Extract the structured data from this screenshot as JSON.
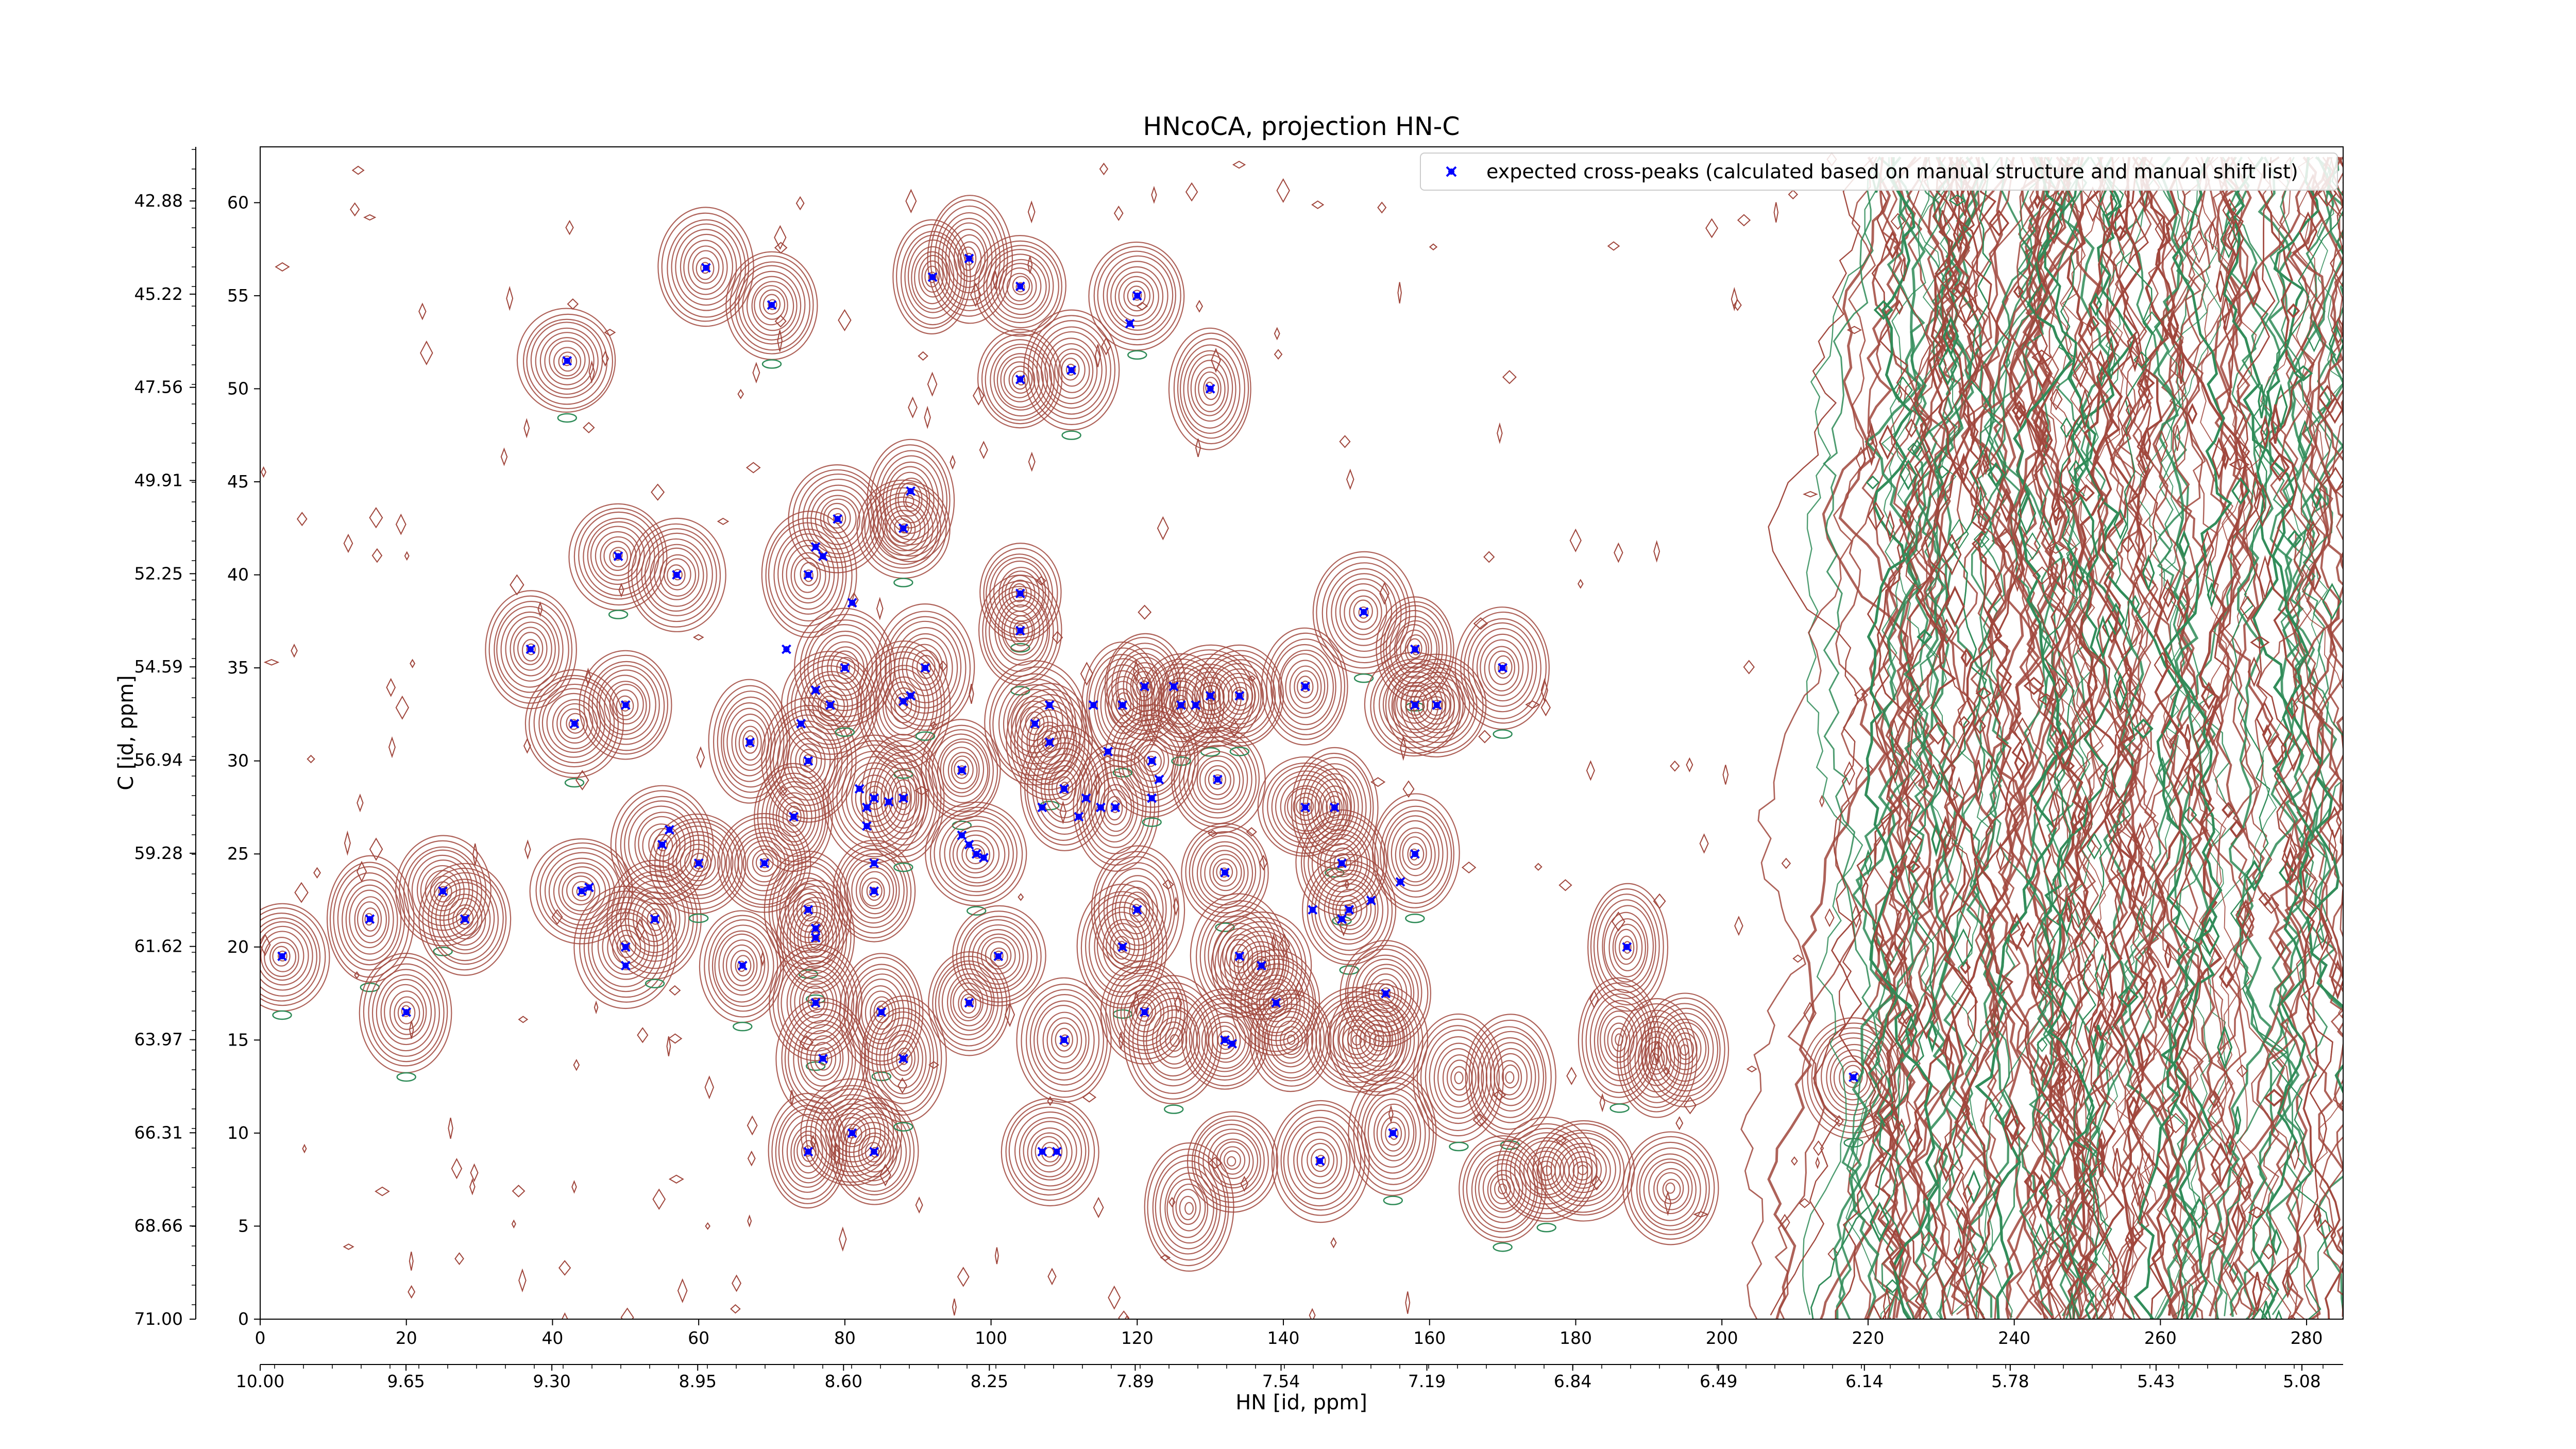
{
  "chart_data": {
    "type": "contour",
    "title": "HNcoCA, projection HN-C",
    "xlabel": "HN [id, ppm]",
    "ylabel": "C [id, ppm]",
    "xlim": [
      0,
      285
    ],
    "ylim": [
      0,
      63
    ],
    "x_ticks": [
      0,
      20,
      40,
      60,
      80,
      100,
      120,
      140,
      160,
      180,
      200,
      220,
      240,
      260,
      280
    ],
    "y_ticks": [
      0,
      5,
      10,
      15,
      20,
      25,
      30,
      35,
      40,
      45,
      50,
      55,
      60
    ],
    "ppm_x_ticks": [
      "10.00",
      "9.65",
      "9.30",
      "8.95",
      "8.60",
      "8.25",
      "7.89",
      "7.54",
      "7.19",
      "6.84",
      "6.49",
      "6.14",
      "5.78",
      "5.43",
      "5.08"
    ],
    "ppm_y_ticks": [
      "71.00",
      "68.66",
      "66.31",
      "63.97",
      "61.62",
      "59.28",
      "56.94",
      "54.59",
      "52.25",
      "49.91",
      "47.56",
      "45.22",
      "42.88"
    ],
    "legend": {
      "position": "top-right",
      "label": "expected cross-peaks (calculated based on manual structure and manual shift list)",
      "marker_color": "#0000ff"
    },
    "colors": {
      "positive_contours": "#a0463c",
      "negative_contours": "#2e8b57",
      "peaks": "#0000ff"
    },
    "contour_peaks": [
      [
        3,
        19.5,
        1
      ],
      [
        15,
        21.5,
        1
      ],
      [
        25,
        23,
        1
      ],
      [
        28,
        21.5,
        0
      ],
      [
        20,
        16.5,
        1
      ],
      [
        37,
        36,
        1
      ],
      [
        43,
        32,
        1
      ],
      [
        44,
        23,
        1
      ],
      [
        50,
        33,
        1
      ],
      [
        50,
        20,
        1
      ],
      [
        49,
        41,
        1
      ],
      [
        57,
        40,
        1
      ],
      [
        55,
        25.5,
        1
      ],
      [
        54,
        21.5,
        1
      ],
      [
        60,
        24.5,
        1
      ],
      [
        61,
        56.5,
        1
      ],
      [
        42,
        51.5,
        1
      ],
      [
        70,
        54.5,
        1
      ],
      [
        67,
        31,
        1
      ],
      [
        66,
        19,
        1
      ],
      [
        69,
        24.5,
        1
      ],
      [
        73,
        27,
        1
      ],
      [
        75,
        30,
        1
      ],
      [
        78,
        33,
        1
      ],
      [
        80,
        35,
        1
      ],
      [
        75,
        40,
        1
      ],
      [
        79,
        43,
        1
      ],
      [
        75,
        22,
        1
      ],
      [
        76,
        20.5,
        1
      ],
      [
        76,
        17,
        1
      ],
      [
        77,
        14,
        1
      ],
      [
        75,
        9,
        1
      ],
      [
        81,
        10,
        1
      ],
      [
        84,
        9,
        1
      ],
      [
        85,
        16.5,
        1
      ],
      [
        84,
        23,
        1
      ],
      [
        84,
        28,
        1
      ],
      [
        88,
        33,
        1
      ],
      [
        88,
        28,
        1
      ],
      [
        88,
        42.5,
        1
      ],
      [
        89,
        44,
        1
      ],
      [
        91,
        35,
        1
      ],
      [
        92,
        56,
        1
      ],
      [
        97,
        57,
        1
      ],
      [
        104,
        55.5,
        1
      ],
      [
        88,
        14,
        1
      ],
      [
        96,
        29.5,
        1
      ],
      [
        98,
        25,
        1
      ],
      [
        101,
        19.5,
        1
      ],
      [
        97,
        17,
        1
      ],
      [
        104,
        39,
        1
      ],
      [
        104,
        37,
        1
      ],
      [
        106,
        32,
        1
      ],
      [
        108,
        31,
        1
      ],
      [
        110,
        28.5,
        1
      ],
      [
        110,
        15,
        1
      ],
      [
        108,
        9,
        1
      ],
      [
        104,
        50.5,
        1
      ],
      [
        111,
        51,
        1
      ],
      [
        120,
        55,
        1
      ],
      [
        130,
        50,
        1
      ],
      [
        117,
        27.5,
        1
      ],
      [
        118,
        33,
        1
      ],
      [
        121,
        34,
        1
      ],
      [
        122,
        30,
        1
      ],
      [
        120,
        22,
        1
      ],
      [
        118,
        20,
        1
      ],
      [
        121,
        16.5,
        1
      ],
      [
        126,
        33,
        1
      ],
      [
        130,
        33.5,
        1
      ],
      [
        132,
        24,
        1
      ],
      [
        132,
        15,
        1
      ],
      [
        131,
        29,
        1
      ],
      [
        134,
        19.5,
        1
      ],
      [
        134,
        33.5,
        1
      ],
      [
        137,
        19,
        1
      ],
      [
        139,
        17,
        1
      ],
      [
        143,
        27.5,
        1
      ],
      [
        143,
        34,
        1
      ],
      [
        147,
        27.5,
        1
      ],
      [
        148,
        24.5,
        1
      ],
      [
        149,
        22,
        1
      ],
      [
        151,
        38,
        1
      ],
      [
        154,
        17.5,
        1
      ],
      [
        155,
        10,
        1
      ],
      [
        158,
        36,
        1
      ],
      [
        158,
        33,
        1
      ],
      [
        158,
        25,
        1
      ],
      [
        161,
        33,
        1
      ],
      [
        170,
        35,
        1
      ],
      [
        145,
        8.5,
        1
      ],
      [
        187,
        20,
        1
      ],
      [
        218,
        13,
        1
      ],
      [
        125,
        15,
        0
      ],
      [
        141,
        15,
        0
      ],
      [
        150,
        15,
        0
      ],
      [
        153,
        15,
        0
      ],
      [
        164,
        13,
        0
      ],
      [
        171,
        13,
        0
      ],
      [
        186,
        15,
        0
      ],
      [
        191,
        14,
        0
      ],
      [
        195,
        14.5,
        0
      ],
      [
        127,
        6,
        0
      ],
      [
        133,
        8.5,
        0
      ],
      [
        170,
        7,
        0
      ],
      [
        176,
        8,
        0
      ],
      [
        181,
        8,
        0
      ],
      [
        193,
        7,
        0
      ]
    ],
    "series": [
      {
        "name": "expected cross-peaks (calculated based on manual structure and manual shift list)",
        "type": "scatter",
        "points": [
          [
            3,
            19.5
          ],
          [
            15,
            21.5
          ],
          [
            25,
            23
          ],
          [
            28,
            21.5
          ],
          [
            20,
            16.5
          ],
          [
            37,
            36
          ],
          [
            43,
            32
          ],
          [
            44,
            23
          ],
          [
            45,
            23.2
          ],
          [
            50,
            33
          ],
          [
            50,
            20
          ],
          [
            50,
            19
          ],
          [
            49,
            41
          ],
          [
            57,
            40
          ],
          [
            55,
            25.5
          ],
          [
            56,
            26.3
          ],
          [
            54,
            21.5
          ],
          [
            60,
            24.5
          ],
          [
            61,
            56.5
          ],
          [
            42,
            51.5
          ],
          [
            70,
            54.5
          ],
          [
            67,
            31
          ],
          [
            66,
            19
          ],
          [
            69,
            24.5
          ],
          [
            73,
            27
          ],
          [
            75,
            30
          ],
          [
            78,
            33
          ],
          [
            80,
            35
          ],
          [
            75,
            40
          ],
          [
            76,
            41.5
          ],
          [
            77,
            41
          ],
          [
            79,
            43
          ],
          [
            75,
            22
          ],
          [
            76,
            20.5
          ],
          [
            76,
            21
          ],
          [
            76,
            17
          ],
          [
            77,
            14
          ],
          [
            74,
            32
          ],
          [
            76,
            33.8
          ],
          [
            81,
            38.5
          ],
          [
            72,
            36
          ],
          [
            75,
            9
          ],
          [
            81,
            10
          ],
          [
            84,
            9
          ],
          [
            85,
            16.5
          ],
          [
            84,
            23
          ],
          [
            84,
            24.5
          ],
          [
            84,
            28
          ],
          [
            83,
            27.5
          ],
          [
            82,
            28.5
          ],
          [
            83,
            26.5
          ],
          [
            86,
            27.8
          ],
          [
            88,
            33.2
          ],
          [
            89,
            33.5
          ],
          [
            88,
            28
          ],
          [
            88,
            42.5
          ],
          [
            89,
            44.5
          ],
          [
            91,
            35
          ],
          [
            92,
            56
          ],
          [
            97,
            57
          ],
          [
            104,
            55.5
          ],
          [
            88,
            14
          ],
          [
            96,
            29.5
          ],
          [
            98,
            25
          ],
          [
            96,
            26
          ],
          [
            97,
            25.5
          ],
          [
            99,
            24.8
          ],
          [
            101,
            19.5
          ],
          [
            97,
            17
          ],
          [
            104,
            39
          ],
          [
            104,
            37
          ],
          [
            106,
            32
          ],
          [
            108,
            31
          ],
          [
            108,
            33
          ],
          [
            110,
            28.5
          ],
          [
            107,
            27.5
          ],
          [
            110,
            15
          ],
          [
            107,
            9
          ],
          [
            109,
            9
          ],
          [
            104,
            50.5
          ],
          [
            111,
            51
          ],
          [
            120,
            55
          ],
          [
            119,
            53.5
          ],
          [
            130,
            50
          ],
          [
            117,
            27.5
          ],
          [
            118,
            33
          ],
          [
            121,
            34
          ],
          [
            122,
            30
          ],
          [
            120,
            22
          ],
          [
            118,
            20
          ],
          [
            121,
            16.5
          ],
          [
            126,
            33
          ],
          [
            130,
            33.5
          ],
          [
            132,
            24
          ],
          [
            132,
            15
          ],
          [
            133,
            14.8
          ],
          [
            131,
            29
          ],
          [
            134,
            19.5
          ],
          [
            134,
            33.5
          ],
          [
            137,
            19
          ],
          [
            139,
            17
          ],
          [
            143,
            27.5
          ],
          [
            143,
            34
          ],
          [
            147,
            27.5
          ],
          [
            148,
            24.5
          ],
          [
            149,
            22
          ],
          [
            151,
            38
          ],
          [
            154,
            17.5
          ],
          [
            155,
            10
          ],
          [
            158,
            36
          ],
          [
            158,
            33
          ],
          [
            158,
            25
          ],
          [
            161,
            33
          ],
          [
            170,
            35
          ],
          [
            145,
            8.5
          ],
          [
            187,
            20
          ],
          [
            218,
            13
          ],
          [
            112,
            27
          ],
          [
            113,
            28
          ],
          [
            115,
            27.5
          ],
          [
            122,
            28
          ],
          [
            123,
            29
          ],
          [
            125,
            34
          ],
          [
            128,
            33
          ],
          [
            144,
            22
          ],
          [
            148,
            21.5
          ],
          [
            152,
            22.5
          ],
          [
            156,
            23.5
          ],
          [
            114,
            33
          ],
          [
            116,
            30.5
          ]
        ]
      }
    ]
  }
}
